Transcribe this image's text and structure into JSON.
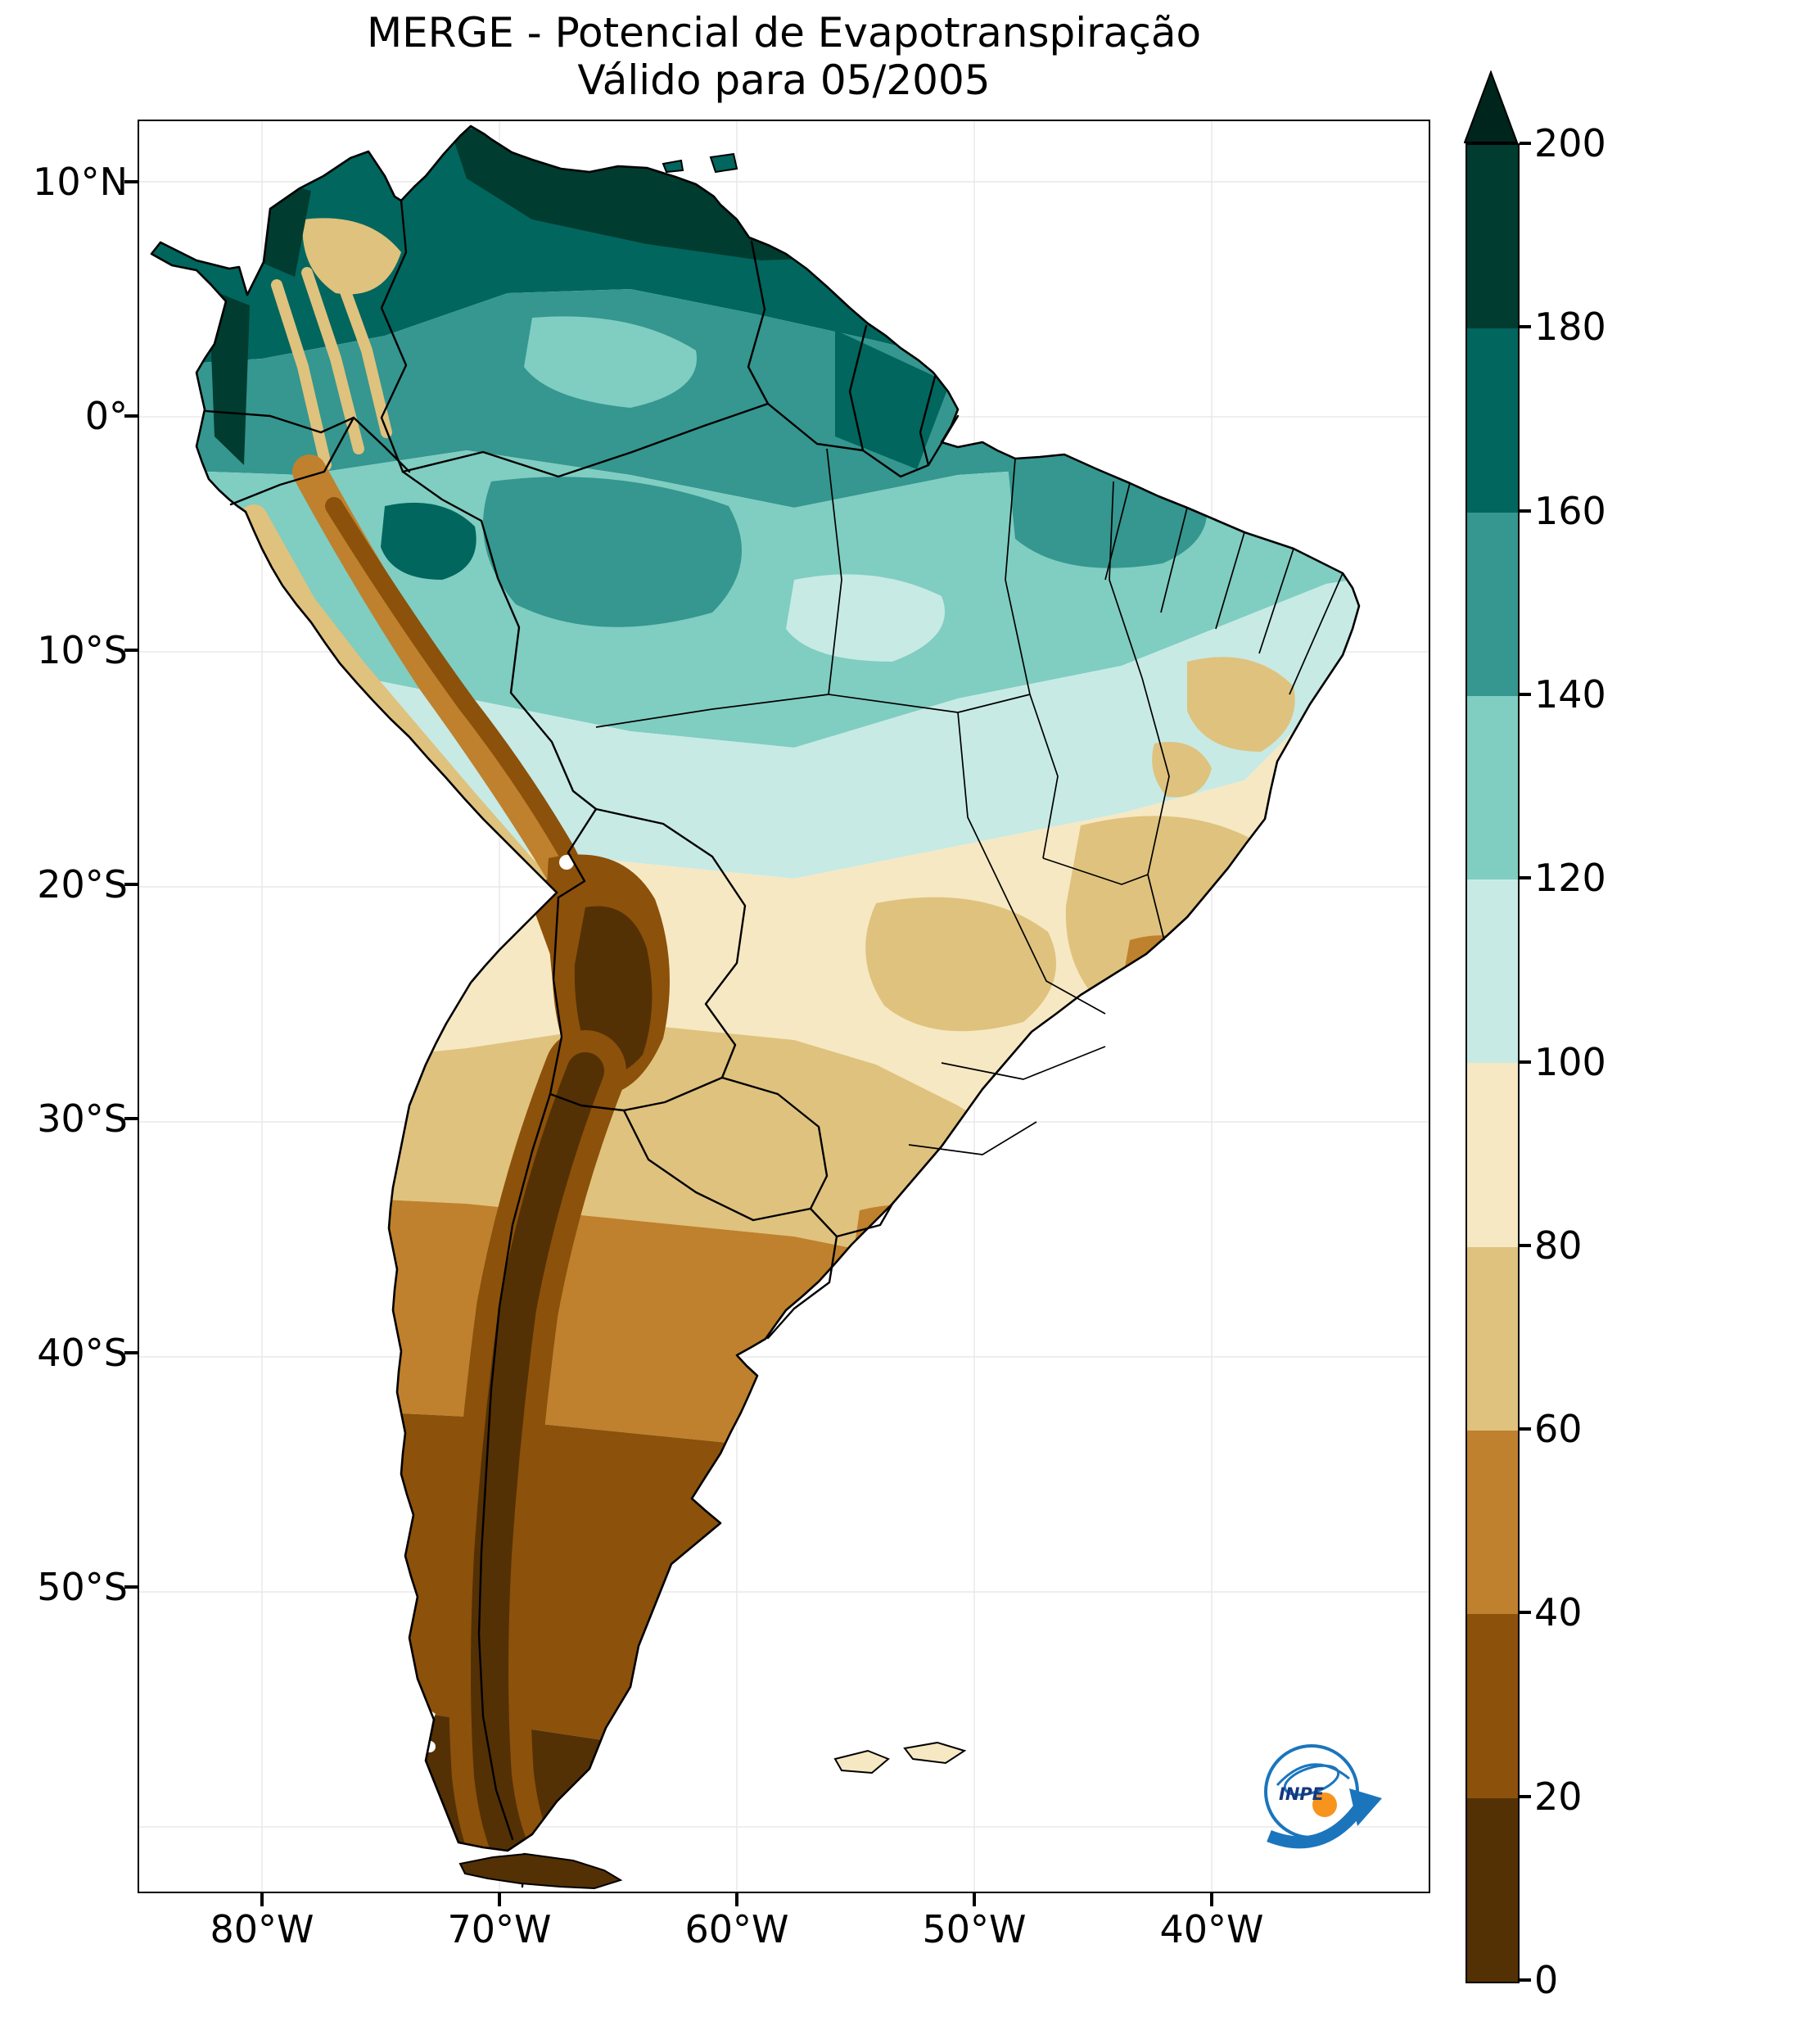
{
  "title": {
    "line1": "MERGE - Potencial de Evapotranspiração",
    "line2": "Válido para 05/2005"
  },
  "axes": {
    "lat_ticks": [
      "10°N",
      "0°",
      "10°S",
      "20°S",
      "30°S",
      "40°S",
      "50°S"
    ],
    "lon_ticks": [
      "80°W",
      "70°W",
      "60°W",
      "50°W",
      "40°W"
    ]
  },
  "colorbar": {
    "ticks": [
      "200",
      "180",
      "160",
      "140",
      "120",
      "100",
      "80",
      "60",
      "40",
      "20",
      "0"
    ],
    "bands_top_to_bottom": [
      "#003c30",
      "#01665e",
      "#35978f",
      "#80cdc1",
      "#c7eae5",
      "#f6e8c3",
      "#dfc27d",
      "#bf812d",
      "#8c510a",
      "#543005"
    ],
    "extend_arrow_color": "#00251d"
  },
  "logo": {
    "label": "INPE",
    "ring_color": "#1b75bc",
    "dot_color": "#f7941d"
  },
  "chart_data": {
    "type": "heatmap",
    "title": "MERGE - Potencial de Evapotranspiração",
    "subtitle": "Válido para 05/2005",
    "region_shown": "South America",
    "colormap": "brown-to-teal (BrBG style)",
    "colorbar_range": [
      0,
      200
    ],
    "colorbar_tick_interval": 20,
    "colorbar_extended_above_max": true,
    "x_axis_ticks": [
      "80°W",
      "70°W",
      "60°W",
      "50°W",
      "40°W"
    ],
    "y_axis_ticks": [
      "10°N",
      "0°",
      "10°S",
      "20°S",
      "30°S",
      "40°S",
      "50°S"
    ],
    "legend_position": "right",
    "observed_regional_values": [
      {
        "region": "Caribbean coast of Venezuela / Colombia",
        "approx_value": "160-200"
      },
      {
        "region": "Guianas and northern Amazon",
        "approx_value": "130-170"
      },
      {
        "region": "Central Amazon basin",
        "approx_value": "120-150"
      },
      {
        "region": "Northeast Brazil coastal strip",
        "approx_value": "100-140"
      },
      {
        "region": "Central Brazil plateau",
        "approx_value": "60-100"
      },
      {
        "region": "Pantanal / Paraguay",
        "approx_value": "60-80"
      },
      {
        "region": "Southern Brazil and Uruguay",
        "approx_value": "40-70"
      },
      {
        "region": "Andes (Peru - Bolivia - Chile)",
        "approx_value": "0-40"
      },
      {
        "region": "Central Argentina",
        "approx_value": "20-50"
      },
      {
        "region": "Patagonia and southern Chile",
        "approx_value": "0-20"
      }
    ]
  }
}
